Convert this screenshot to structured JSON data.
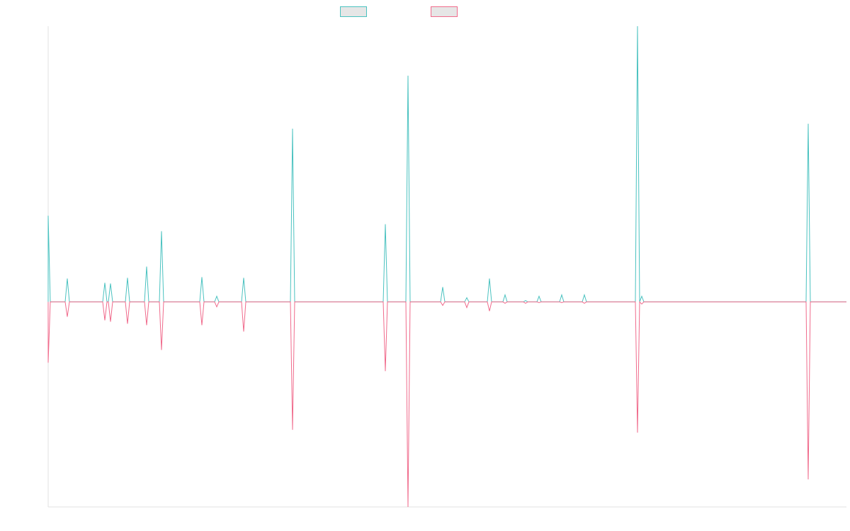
{
  "chart_data": {
    "type": "line",
    "title": "",
    "xlabel": "",
    "ylabel": "",
    "grid": false,
    "legend_placement": "top-center",
    "series": [
      {
        "name": "",
        "color": "#4ac2c0",
        "spikes": [
          {
            "x": 0,
            "value": 122
          },
          {
            "x": 27,
            "value": 33
          },
          {
            "x": 80,
            "value": 27
          },
          {
            "x": 88,
            "value": 26
          },
          {
            "x": 112,
            "value": 34
          },
          {
            "x": 139,
            "value": 50
          },
          {
            "x": 160,
            "value": 100
          },
          {
            "x": 217,
            "value": 35
          },
          {
            "x": 238,
            "value": 8
          },
          {
            "x": 276,
            "value": 34
          },
          {
            "x": 345,
            "value": 245
          },
          {
            "x": 476,
            "value": 110
          },
          {
            "x": 508,
            "value": 320
          },
          {
            "x": 557,
            "value": 21
          },
          {
            "x": 591,
            "value": 6
          },
          {
            "x": 623,
            "value": 33
          },
          {
            "x": 645,
            "value": 10
          },
          {
            "x": 674,
            "value": 2
          },
          {
            "x": 693,
            "value": 8
          },
          {
            "x": 725,
            "value": 10
          },
          {
            "x": 757,
            "value": 10
          },
          {
            "x": 832,
            "value": 390
          },
          {
            "x": 838,
            "value": 8
          },
          {
            "x": 1073,
            "value": 252
          }
        ]
      },
      {
        "name": "",
        "color": "#f06b8c",
        "spikes": [
          {
            "x": 0,
            "value": -86
          },
          {
            "x": 27,
            "value": -21
          },
          {
            "x": 80,
            "value": -26
          },
          {
            "x": 88,
            "value": -28
          },
          {
            "x": 112,
            "value": -31
          },
          {
            "x": 139,
            "value": -33
          },
          {
            "x": 160,
            "value": -68
          },
          {
            "x": 217,
            "value": -33
          },
          {
            "x": 238,
            "value": -7
          },
          {
            "x": 276,
            "value": -42
          },
          {
            "x": 345,
            "value": -181
          },
          {
            "x": 476,
            "value": -98
          },
          {
            "x": 508,
            "value": -290
          },
          {
            "x": 557,
            "value": -5
          },
          {
            "x": 591,
            "value": -8
          },
          {
            "x": 623,
            "value": -13
          },
          {
            "x": 645,
            "value": -2
          },
          {
            "x": 674,
            "value": -2
          },
          {
            "x": 693,
            "value": -1
          },
          {
            "x": 725,
            "value": -1
          },
          {
            "x": 757,
            "value": -2
          },
          {
            "x": 832,
            "value": -185
          },
          {
            "x": 838,
            "value": -3
          },
          {
            "x": 1073,
            "value": -251
          }
        ]
      }
    ],
    "x_range": [
      0,
      1127
    ],
    "ylim": [
      -290,
      390
    ]
  },
  "colors": {
    "series_a": "#4ac2c0",
    "series_b": "#f06b8c",
    "axis": "#e0e0e0",
    "swatch_fill": "#e6e6e6"
  }
}
